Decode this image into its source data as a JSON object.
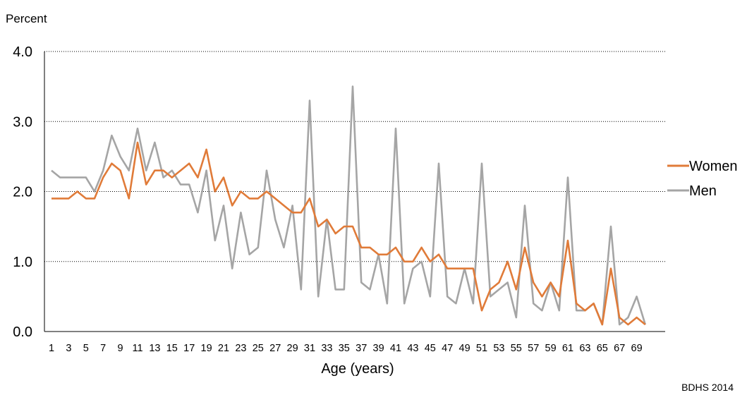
{
  "chart_data": {
    "type": "line",
    "ylabel": "Percent",
    "xlabel": "Age (years)",
    "source_note": "BDHS 2014",
    "ylim": [
      0,
      4
    ],
    "y_ticks": [
      "0.0",
      "1.0",
      "2.0",
      "3.0",
      "4.0"
    ],
    "y_tick_values": [
      0,
      1,
      2,
      3,
      4
    ],
    "x": [
      1,
      2,
      3,
      4,
      5,
      6,
      7,
      8,
      9,
      10,
      11,
      12,
      13,
      14,
      15,
      16,
      17,
      18,
      19,
      20,
      21,
      22,
      23,
      24,
      25,
      26,
      27,
      28,
      29,
      30,
      31,
      32,
      33,
      34,
      35,
      36,
      37,
      38,
      39,
      40,
      41,
      42,
      43,
      44,
      45,
      46,
      47,
      48,
      49,
      50,
      51,
      52,
      53,
      54,
      55,
      56,
      57,
      58,
      59,
      60,
      61,
      62,
      63,
      64,
      65,
      66,
      67,
      68,
      69,
      70
    ],
    "x_tick_labels": [
      "1",
      "3",
      "5",
      "7",
      "9",
      "11",
      "13",
      "15",
      "17",
      "19",
      "21",
      "23",
      "25",
      "27",
      "29",
      "31",
      "33",
      "35",
      "37",
      "39",
      "41",
      "43",
      "45",
      "47",
      "49",
      "51",
      "53",
      "55",
      "57",
      "59",
      "61",
      "63",
      "65",
      "67",
      "69"
    ],
    "grid": "horizontal dotted",
    "legend_position": "right",
    "series": [
      {
        "name": "Women",
        "color": "#E07B39",
        "values": [
          1.9,
          1.9,
          1.9,
          2.0,
          1.9,
          1.9,
          2.2,
          2.4,
          2.3,
          1.9,
          2.7,
          2.1,
          2.3,
          2.3,
          2.2,
          2.3,
          2.4,
          2.2,
          2.6,
          2.0,
          2.2,
          1.8,
          2.0,
          1.9,
          1.9,
          2.0,
          1.9,
          1.8,
          1.7,
          1.7,
          1.9,
          1.5,
          1.6,
          1.4,
          1.5,
          1.5,
          1.2,
          1.2,
          1.1,
          1.1,
          1.2,
          1.0,
          1.0,
          1.2,
          1.0,
          1.1,
          0.9,
          0.9,
          0.9,
          0.9,
          0.3,
          0.6,
          0.7,
          1.0,
          0.6,
          1.2,
          0.7,
          0.5,
          0.7,
          0.5,
          1.3,
          0.4,
          0.3,
          0.4,
          0.1,
          0.9,
          0.2,
          0.1,
          0.2,
          0.1
        ]
      },
      {
        "name": "Men",
        "color": "#A5A5A5",
        "values": [
          2.3,
          2.2,
          2.2,
          2.2,
          2.2,
          2.0,
          2.3,
          2.8,
          2.5,
          2.3,
          2.9,
          2.3,
          2.7,
          2.2,
          2.3,
          2.1,
          2.1,
          1.7,
          2.3,
          1.3,
          1.8,
          0.9,
          1.7,
          1.1,
          1.2,
          2.3,
          1.6,
          1.2,
          1.8,
          0.6,
          3.3,
          0.5,
          1.6,
          0.6,
          0.6,
          3.5,
          0.7,
          0.6,
          1.1,
          0.4,
          2.9,
          0.4,
          0.9,
          1.0,
          0.5,
          2.4,
          0.5,
          0.4,
          0.9,
          0.4,
          2.4,
          0.5,
          0.6,
          0.7,
          0.2,
          1.8,
          0.4,
          0.3,
          0.7,
          0.3,
          2.2,
          0.3,
          0.3,
          0.4,
          0.1,
          1.5,
          0.1,
          0.2,
          0.5,
          0.1
        ]
      }
    ]
  }
}
